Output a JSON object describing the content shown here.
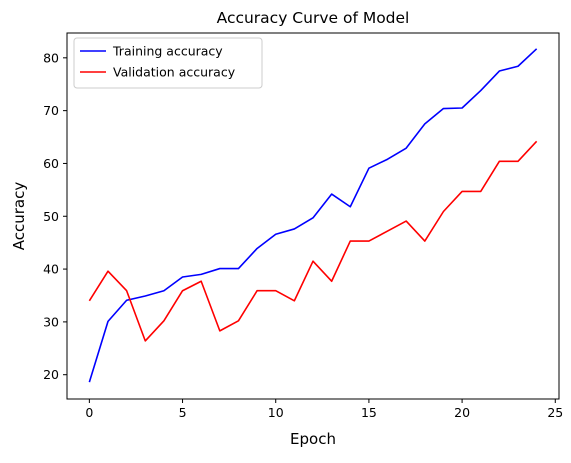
{
  "chart_data": {
    "type": "line",
    "title": "Accuracy Curve of Model",
    "xlabel": "Epoch",
    "ylabel": "Accuracy",
    "xlim": [
      -1.2,
      25.2
    ],
    "ylim": [
      15.4,
      84.7
    ],
    "xticks": [
      0,
      5,
      10,
      15,
      20,
      25
    ],
    "yticks": [
      20,
      30,
      40,
      50,
      60,
      70,
      80
    ],
    "grid": false,
    "legend_position": "upper left",
    "x": [
      0,
      1,
      2,
      3,
      4,
      5,
      6,
      7,
      8,
      9,
      10,
      11,
      12,
      13,
      14,
      15,
      16,
      17,
      18,
      19,
      20,
      21,
      22,
      23,
      24
    ],
    "series": [
      {
        "name": "Training accuracy",
        "color": "#0000ff",
        "values": [
          18.6,
          30.1,
          34.1,
          34.9,
          35.9,
          38.5,
          39.0,
          40.1,
          40.1,
          43.9,
          46.6,
          47.6,
          49.7,
          54.2,
          51.8,
          59.1,
          60.8,
          62.9,
          67.5,
          70.4,
          70.5,
          73.8,
          77.5,
          78.4,
          81.7
        ]
      },
      {
        "name": "Validation accuracy",
        "color": "#ff0000",
        "values": [
          34.0,
          39.6,
          35.9,
          26.4,
          30.2,
          35.9,
          37.7,
          28.3,
          30.2,
          35.9,
          35.9,
          34.0,
          41.5,
          37.7,
          45.3,
          45.3,
          47.2,
          49.1,
          45.3,
          50.9,
          54.7,
          54.7,
          60.4,
          60.4,
          64.2
        ]
      }
    ]
  }
}
